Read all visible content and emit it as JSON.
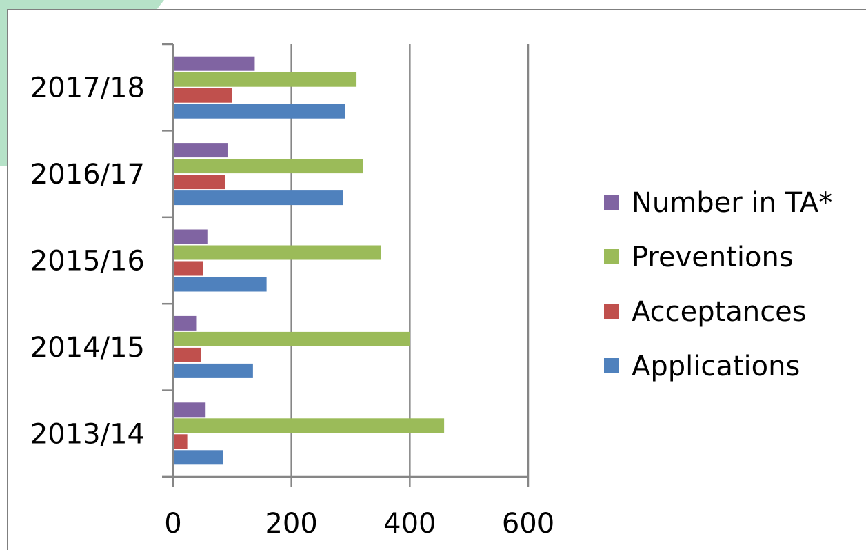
{
  "chart_data": {
    "type": "bar",
    "orientation": "horizontal",
    "categories": [
      "2013/14",
      "2014/15",
      "2015/16",
      "2016/17",
      "2017/18"
    ],
    "series": [
      {
        "name": "Applications",
        "color": "#4f81bd",
        "values": [
          85,
          135,
          158,
          287,
          291
        ]
      },
      {
        "name": "Acceptances",
        "color": "#c0504d",
        "values": [
          24,
          47,
          51,
          88,
          100
        ]
      },
      {
        "name": "Preventions",
        "color": "#9bbb59",
        "values": [
          458,
          400,
          351,
          321,
          310
        ]
      },
      {
        "name": "Number in TA*",
        "color": "#8064a2",
        "values": [
          55,
          39,
          58,
          92,
          138
        ]
      }
    ],
    "xticks": [
      "0",
      "200",
      "400",
      "600"
    ],
    "xlim": [
      0,
      600
    ],
    "grid": true,
    "legend_position": "right",
    "legend_order": [
      "Number in TA*",
      "Preventions",
      "Acceptances",
      "Applications"
    ]
  },
  "colors": {
    "grid": "#868686",
    "corner_accent": "#b6e2c8"
  }
}
